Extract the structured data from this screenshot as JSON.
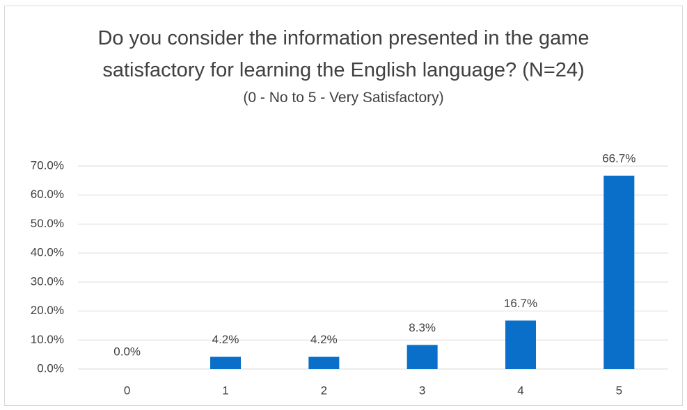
{
  "chart_data": {
    "type": "bar",
    "title": "Do you consider the information presented in the game satisfactory for learning the English language? (N=24)",
    "subtitle": "(0 - No to 5 - Very Satisfactory)",
    "categories": [
      "0",
      "1",
      "2",
      "3",
      "4",
      "5"
    ],
    "values": [
      0,
      4.2,
      4.2,
      8.3,
      16.7,
      66.7
    ],
    "value_labels": [
      "0.0%",
      "4.2%",
      "4.2%",
      "8.3%",
      "16.7%",
      "66.7%"
    ],
    "color": "#0a6fc8",
    "ylim": [
      0,
      70
    ],
    "yticks": [
      {
        "value": 0,
        "label": "0.0%"
      },
      {
        "value": 10,
        "label": "10.0%"
      },
      {
        "value": 20,
        "label": "20.0%"
      },
      {
        "value": 30,
        "label": "30.0%"
      },
      {
        "value": 40,
        "label": "40.0%"
      },
      {
        "value": 50,
        "label": "50.0%"
      },
      {
        "value": 60,
        "label": "60.0%"
      },
      {
        "value": 70,
        "label": "70.0%"
      }
    ],
    "grid": true
  }
}
